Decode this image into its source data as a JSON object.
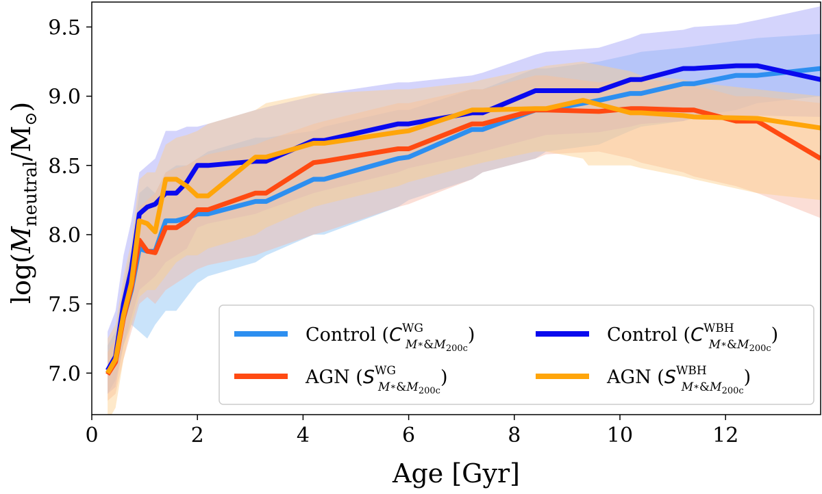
{
  "chart_data": {
    "type": "line",
    "xlabel": "Age [Gyr]",
    "ylabel": {
      "prefix": "log(",
      "var": "M",
      "sub": "neutral",
      "slash": "/M",
      "sun": "⊙",
      "suffix": ")"
    },
    "xlim": [
      0,
      13.8
    ],
    "ylim": [
      6.7,
      9.68
    ],
    "xticks": [
      0,
      2,
      4,
      6,
      8,
      10,
      12
    ],
    "yticks": [
      7.0,
      7.5,
      8.0,
      8.5,
      9.0,
      9.5
    ],
    "xtick_labels": [
      "0",
      "2",
      "4",
      "6",
      "8",
      "10",
      "12"
    ],
    "ytick_labels": [
      "7.0",
      "7.5",
      "8.0",
      "8.5",
      "9.0",
      "9.5"
    ],
    "legend_position": "lower-right",
    "series": [
      {
        "name": "Control (C_WG)",
        "label_text": "Control (",
        "sym": "C",
        "sup": "WG",
        "color": "#2d8ff0",
        "band_color": "#87c2f5",
        "x": [
          0.3,
          0.45,
          0.6,
          0.75,
          0.9,
          1.05,
          1.2,
          1.4,
          1.6,
          1.8,
          2.0,
          2.2,
          3.1,
          3.3,
          4.2,
          4.4,
          5.8,
          6.0,
          7.2,
          7.4,
          8.4,
          8.6,
          9.6,
          10.2,
          10.4,
          11.2,
          11.4,
          12.2,
          12.6,
          13.8
        ],
        "values": [
          7.0,
          7.1,
          7.4,
          7.6,
          7.9,
          7.88,
          7.88,
          8.1,
          8.1,
          8.12,
          8.15,
          8.15,
          8.24,
          8.24,
          8.4,
          8.4,
          8.55,
          8.56,
          8.76,
          8.76,
          8.9,
          8.9,
          8.97,
          9.02,
          9.02,
          9.09,
          9.09,
          9.15,
          9.15,
          9.2
        ],
        "lower": [
          6.85,
          6.95,
          7.2,
          7.35,
          7.3,
          7.25,
          7.35,
          7.45,
          7.45,
          7.55,
          7.65,
          7.7,
          7.8,
          7.85,
          8.0,
          8.0,
          8.2,
          8.25,
          8.4,
          8.45,
          8.55,
          8.6,
          8.65,
          8.75,
          8.78,
          8.82,
          8.85,
          8.9,
          8.95,
          9.0
        ],
        "upper": [
          7.2,
          7.3,
          7.65,
          7.9,
          8.3,
          8.35,
          8.3,
          8.45,
          8.5,
          8.5,
          8.55,
          8.6,
          8.7,
          8.7,
          8.75,
          8.78,
          8.9,
          8.9,
          9.05,
          9.05,
          9.2,
          9.2,
          9.25,
          9.3,
          9.32,
          9.35,
          9.36,
          9.4,
          9.42,
          9.45
        ]
      },
      {
        "name": "Control (C_WBH)",
        "label_text": "Control (",
        "sym": "C",
        "sup": "WBH",
        "color": "#0a0aee",
        "band_color": "#a0a0f8",
        "x": [
          0.3,
          0.45,
          0.6,
          0.75,
          0.9,
          1.05,
          1.2,
          1.4,
          1.6,
          1.8,
          2.0,
          2.2,
          3.1,
          3.3,
          4.2,
          4.4,
          5.8,
          6.0,
          7.2,
          7.4,
          8.4,
          8.6,
          9.6,
          10.2,
          10.4,
          11.2,
          11.4,
          12.2,
          12.6,
          13.8
        ],
        "values": [
          7.02,
          7.12,
          7.5,
          7.75,
          8.15,
          8.2,
          8.22,
          8.3,
          8.3,
          8.38,
          8.5,
          8.5,
          8.53,
          8.53,
          8.68,
          8.68,
          8.8,
          8.8,
          8.88,
          8.88,
          9.04,
          9.04,
          9.04,
          9.12,
          9.12,
          9.2,
          9.2,
          9.22,
          9.22,
          9.12
        ],
        "lower": [
          6.85,
          6.9,
          7.2,
          7.4,
          7.6,
          7.65,
          7.7,
          7.8,
          7.85,
          7.9,
          8.05,
          8.08,
          8.15,
          8.18,
          8.3,
          8.32,
          8.45,
          8.48,
          8.58,
          8.6,
          8.7,
          8.72,
          8.74,
          8.78,
          8.8,
          8.82,
          8.84,
          8.85,
          8.86,
          8.85
        ],
        "upper": [
          7.3,
          7.45,
          7.85,
          8.1,
          8.45,
          8.5,
          8.55,
          8.75,
          8.75,
          8.78,
          8.78,
          8.8,
          8.9,
          8.92,
          9.0,
          9.02,
          9.1,
          9.1,
          9.15,
          9.17,
          9.3,
          9.32,
          9.35,
          9.42,
          9.45,
          9.48,
          9.5,
          9.52,
          9.55,
          9.65
        ]
      },
      {
        "name": "AGN (S_WG)",
        "label_text": "AGN (",
        "sym": "S",
        "sup": "WG",
        "color": "#ff4a12",
        "band_color": "#f7b5a4",
        "x": [
          0.3,
          0.45,
          0.6,
          0.75,
          0.9,
          1.05,
          1.2,
          1.4,
          1.6,
          1.8,
          2.0,
          2.2,
          3.1,
          3.3,
          4.2,
          4.4,
          5.8,
          6.0,
          7.2,
          7.4,
          8.4,
          8.6,
          9.6,
          10.2,
          10.4,
          11.2,
          11.4,
          12.2,
          12.6,
          13.8
        ],
        "values": [
          6.99,
          7.08,
          7.4,
          7.62,
          7.96,
          7.88,
          7.87,
          8.05,
          8.05,
          8.1,
          8.18,
          8.18,
          8.3,
          8.3,
          8.52,
          8.53,
          8.62,
          8.62,
          8.8,
          8.8,
          8.9,
          8.9,
          8.89,
          8.91,
          8.91,
          8.9,
          8.9,
          8.82,
          8.82,
          8.55
        ],
        "lower": [
          6.8,
          6.85,
          7.1,
          7.3,
          7.5,
          7.55,
          7.5,
          7.6,
          7.65,
          7.7,
          7.75,
          7.78,
          7.85,
          7.88,
          8.0,
          8.02,
          8.2,
          8.22,
          8.4,
          8.45,
          8.55,
          8.58,
          8.6,
          8.55,
          8.52,
          8.45,
          8.42,
          8.35,
          8.3,
          8.12
        ],
        "upper": [
          7.15,
          7.25,
          7.6,
          7.85,
          8.2,
          8.25,
          8.3,
          8.45,
          8.48,
          8.5,
          8.55,
          8.58,
          8.65,
          8.68,
          8.8,
          8.82,
          8.95,
          8.95,
          9.05,
          9.05,
          9.15,
          9.15,
          9.1,
          9.12,
          9.12,
          9.1,
          9.08,
          9.0,
          9.0,
          8.95
        ]
      },
      {
        "name": "AGN (S_WBH)",
        "label_text": "AGN (",
        "sym": "S",
        "sup": "WBH",
        "color": "#ffa50a",
        "band_color": "#fccf8a",
        "x": [
          0.3,
          0.45,
          0.6,
          0.75,
          0.9,
          1.05,
          1.2,
          1.4,
          1.6,
          1.8,
          2.0,
          2.2,
          3.1,
          3.3,
          4.2,
          4.4,
          5.8,
          6.0,
          7.2,
          7.4,
          8.4,
          8.6,
          9.3,
          9.4,
          10.2,
          10.4,
          11.2,
          11.4,
          12.6,
          13.8
        ],
        "values": [
          7.0,
          7.1,
          7.42,
          7.65,
          8.1,
          8.08,
          8.02,
          8.4,
          8.4,
          8.35,
          8.28,
          8.28,
          8.56,
          8.56,
          8.66,
          8.66,
          8.74,
          8.75,
          8.9,
          8.9,
          8.91,
          8.91,
          8.97,
          8.96,
          8.88,
          8.88,
          8.86,
          8.85,
          8.84,
          8.77
        ],
        "lower": [
          6.65,
          6.75,
          7.1,
          7.35,
          7.55,
          7.6,
          7.6,
          7.7,
          7.8,
          7.85,
          7.85,
          7.9,
          8.0,
          8.05,
          8.2,
          8.22,
          8.35,
          8.38,
          8.5,
          8.52,
          8.6,
          8.6,
          8.55,
          8.5,
          8.5,
          8.48,
          8.42,
          8.4,
          8.3,
          8.25
        ],
        "upper": [
          7.25,
          7.35,
          7.7,
          7.95,
          8.4,
          8.45,
          8.45,
          8.65,
          8.7,
          8.72,
          8.75,
          8.8,
          8.9,
          8.95,
          9.02,
          9.02,
          9.05,
          9.05,
          9.1,
          9.12,
          9.2,
          9.22,
          9.25,
          9.24,
          9.18,
          9.15,
          9.12,
          9.1,
          9.05,
          9.0
        ]
      }
    ],
    "legend_subscript": {
      "m": "M",
      "star": "∗",
      "amp": "&",
      "m2": "M",
      "sub2": "200c",
      "close": ")"
    }
  }
}
